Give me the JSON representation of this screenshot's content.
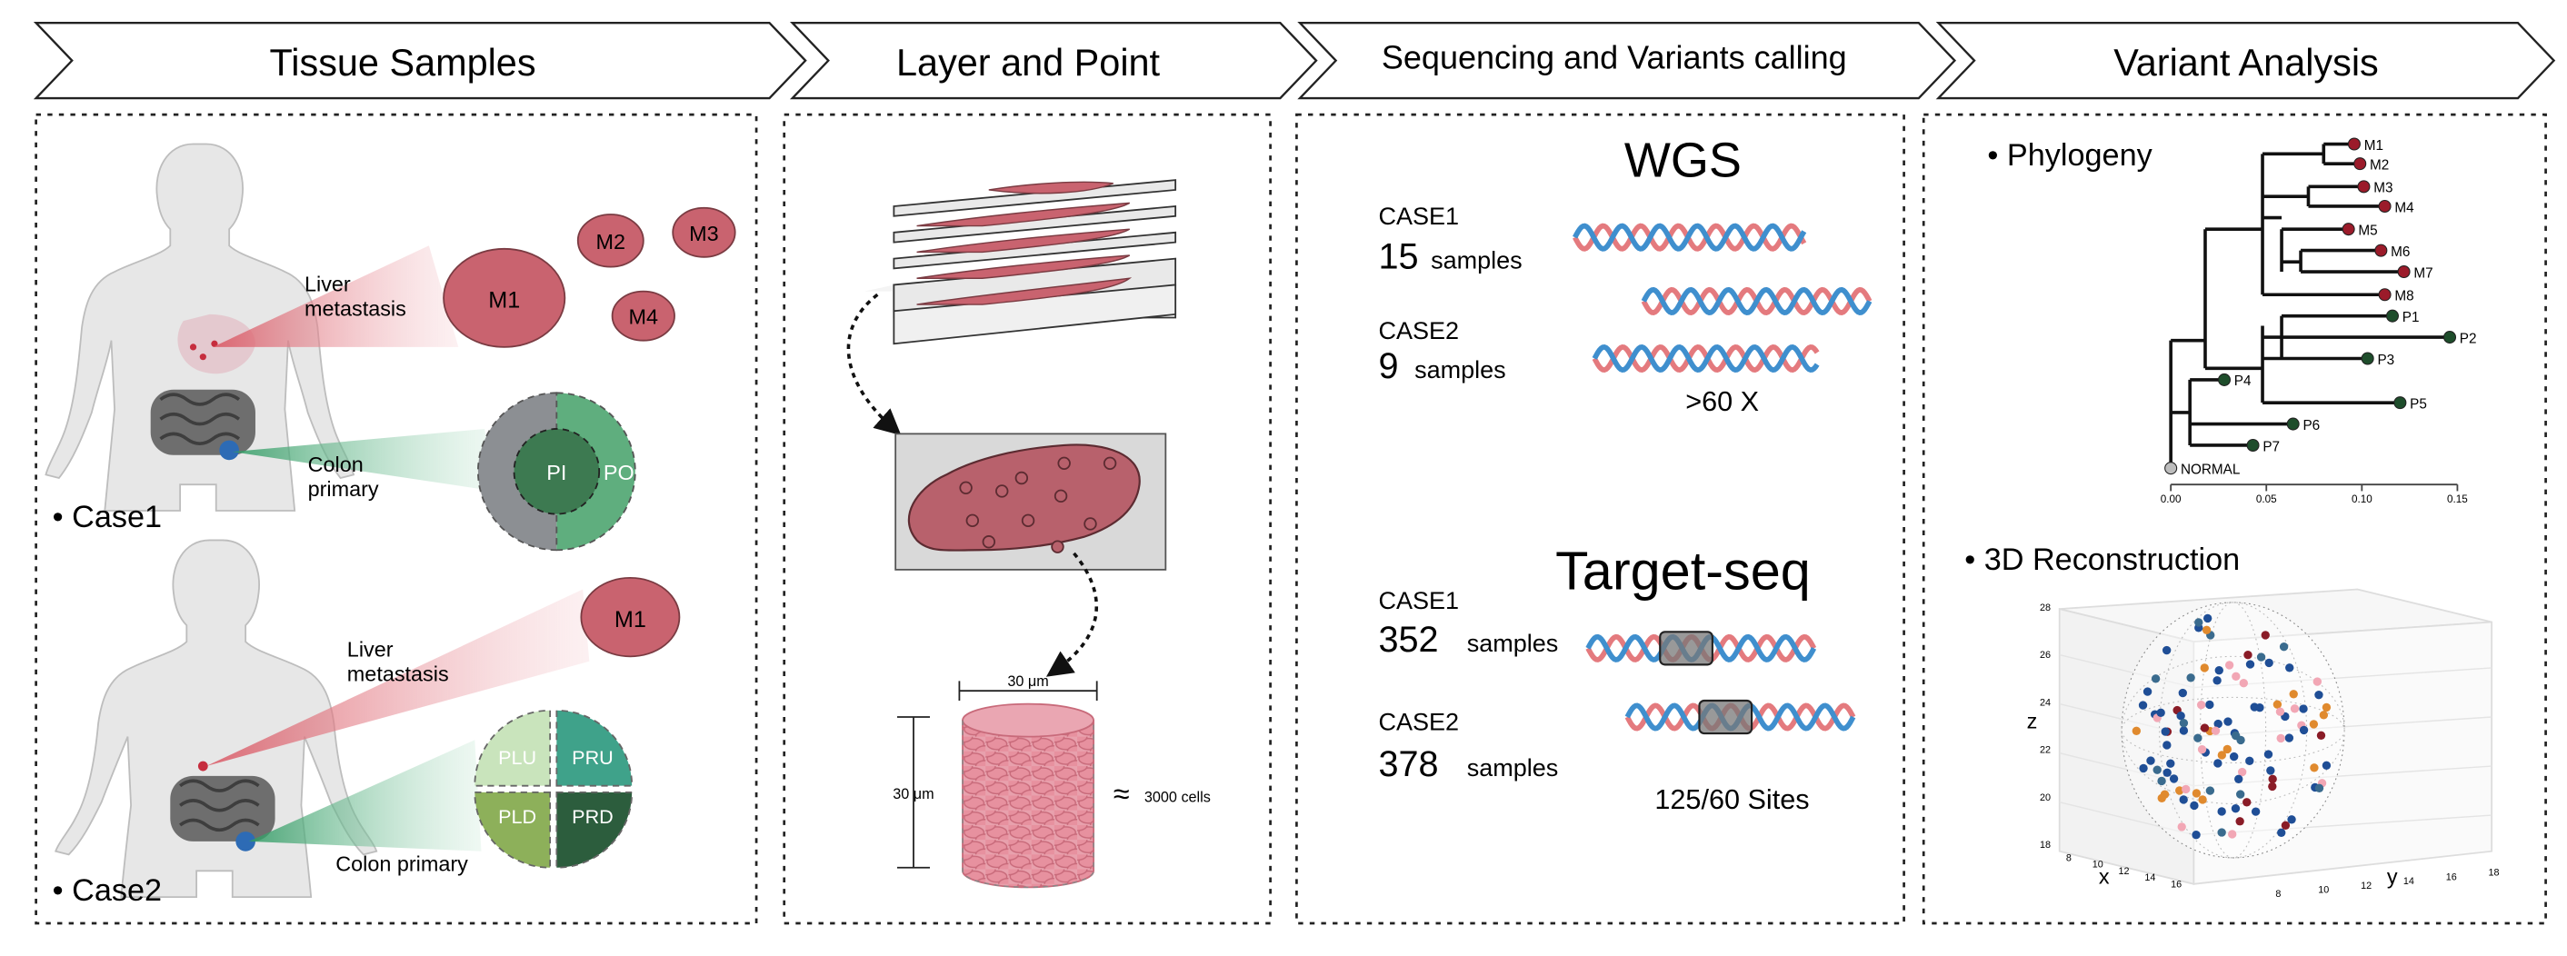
{
  "headers": {
    "tissue": "Tissue Samples",
    "layer": "Layer and Point",
    "seq": "Sequencing and Variants calling",
    "variant": "Variant  Analysis"
  },
  "tissue": {
    "case1": {
      "bullet": "• Case1",
      "liver_l1": "Liver",
      "liver_l2": "metastasis",
      "colon_l1": "Colon",
      "colon_l2": "primary",
      "mets": [
        "M1",
        "M2",
        "M3",
        "M4"
      ],
      "inner": "PI",
      "outer": "PO"
    },
    "case2": {
      "bullet": "• Case2",
      "liver_l1": "Liver",
      "liver_l2": "metastasis",
      "colon": "Colon primary",
      "mets": [
        "M1"
      ],
      "quads": [
        "PLU",
        "PRU",
        "PLD",
        "PRD"
      ]
    }
  },
  "layer": {
    "width_label": "30 μm",
    "height_label": "30 μm",
    "approx": "≈",
    "cells": "3000 cells"
  },
  "seq": {
    "wgs_title": "WGS",
    "wgs_case1": "CASE1",
    "wgs_case1_n": "15",
    "wgs_case1_unit": "samples",
    "wgs_case2": "CASE2",
    "wgs_case2_n": "9",
    "wgs_case2_unit": "samples",
    "coverage": ">60 X",
    "target_title": "Target-seq",
    "t_case1": "CASE1",
    "t_case1_n": "352",
    "t_case1_unit": "samples",
    "t_case2": "CASE2",
    "t_case2_n": "378",
    "t_case2_unit": "samples",
    "sites": "125/60 Sites"
  },
  "variant": {
    "phylogeny_title": "• Phylogeny",
    "tips": [
      "M1",
      "M2",
      "M3",
      "M4",
      "M5",
      "M6",
      "M7",
      "M8",
      "P1",
      "P2",
      "P3",
      "P4",
      "P5",
      "P6",
      "P7",
      "NORMAL"
    ],
    "axis_ticks": [
      "0.00",
      "0.05",
      "0.10",
      "0.15"
    ],
    "recon_title": "• 3D Reconstruction",
    "x_label": "x",
    "y_label": "y",
    "z_label": "z",
    "z_ticks": [
      "18",
      "20",
      "22",
      "24",
      "26",
      "28"
    ],
    "x_ticks": [
      "8",
      "10",
      "12",
      "14",
      "16"
    ],
    "y_ticks": [
      "8",
      "10",
      "12",
      "14",
      "16",
      "18"
    ]
  },
  "colors": {
    "metastasis": "#c9636f",
    "primary_green": "#2e7d4f",
    "dna_red": "#e47a7e",
    "dna_blue": "#3f8fce",
    "tip_red": "#9b1b2a",
    "tip_green": "#1e4d2b"
  }
}
